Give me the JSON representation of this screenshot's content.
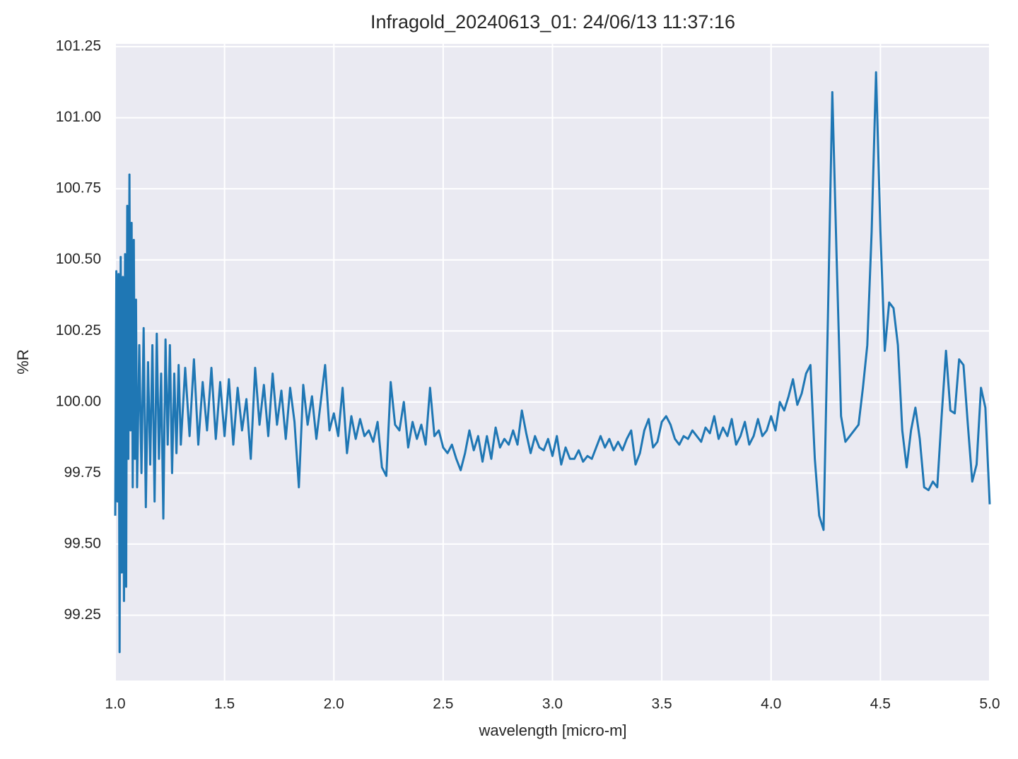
{
  "chart_data": {
    "type": "line",
    "title": "Infragold_20240613_01:  24/06/13 11:37:16",
    "xlabel": "wavelength [micro-m]",
    "ylabel": "%R",
    "xlim": [
      1.0,
      5.0
    ],
    "ylim": [
      99.02,
      101.26
    ],
    "xticks": [
      {
        "value": 1,
        "label": "1.0"
      },
      1.5,
      {
        "value": 2,
        "label": "2.0"
      },
      2.5,
      {
        "value": 3,
        "label": "3.0"
      },
      3.5,
      {
        "value": 4,
        "label": "4.0"
      },
      4.5,
      {
        "value": 5,
        "label": "5.0"
      }
    ],
    "yticks": [
      99.25,
      {
        "value": 99.5,
        "label": "99.50"
      },
      99.75,
      {
        "value": 100,
        "label": "100.00"
      },
      100.25,
      {
        "value": 100.5,
        "label": "100.50"
      },
      100.75,
      {
        "value": 101,
        "label": "101.00"
      },
      101.25
    ],
    "grid": true,
    "x": [
      1.0,
      1.005,
      1.01,
      1.015,
      1.02,
      1.025,
      1.03,
      1.035,
      1.04,
      1.045,
      1.05,
      1.055,
      1.06,
      1.065,
      1.07,
      1.075,
      1.08,
      1.085,
      1.09,
      1.095,
      1.1,
      1.11,
      1.12,
      1.13,
      1.14,
      1.15,
      1.16,
      1.17,
      1.18,
      1.19,
      1.2,
      1.21,
      1.22,
      1.23,
      1.24,
      1.25,
      1.26,
      1.27,
      1.28,
      1.29,
      1.3,
      1.32,
      1.34,
      1.36,
      1.38,
      1.4,
      1.42,
      1.44,
      1.46,
      1.48,
      1.5,
      1.52,
      1.54,
      1.56,
      1.58,
      1.6,
      1.62,
      1.64,
      1.66,
      1.68,
      1.7,
      1.72,
      1.74,
      1.76,
      1.78,
      1.8,
      1.82,
      1.84,
      1.86,
      1.88,
      1.9,
      1.92,
      1.94,
      1.96,
      1.98,
      2.0,
      2.02,
      2.04,
      2.06,
      2.08,
      2.1,
      2.12,
      2.14,
      2.16,
      2.18,
      2.2,
      2.22,
      2.24,
      2.26,
      2.28,
      2.3,
      2.32,
      2.34,
      2.36,
      2.38,
      2.4,
      2.42,
      2.44,
      2.46,
      2.48,
      2.5,
      2.52,
      2.54,
      2.56,
      2.58,
      2.6,
      2.62,
      2.64,
      2.66,
      2.68,
      2.7,
      2.72,
      2.74,
      2.76,
      2.78,
      2.8,
      2.82,
      2.84,
      2.86,
      2.88,
      2.9,
      2.92,
      2.94,
      2.96,
      2.98,
      3.0,
      3.02,
      3.04,
      3.06,
      3.08,
      3.1,
      3.12,
      3.14,
      3.16,
      3.18,
      3.2,
      3.22,
      3.24,
      3.26,
      3.28,
      3.3,
      3.32,
      3.34,
      3.36,
      3.38,
      3.4,
      3.42,
      3.44,
      3.46,
      3.48,
      3.5,
      3.52,
      3.54,
      3.56,
      3.58,
      3.6,
      3.62,
      3.64,
      3.66,
      3.68,
      3.7,
      3.72,
      3.74,
      3.76,
      3.78,
      3.8,
      3.82,
      3.84,
      3.86,
      3.88,
      3.9,
      3.92,
      3.94,
      3.96,
      3.98,
      4.0,
      4.02,
      4.04,
      4.06,
      4.08,
      4.1,
      4.12,
      4.14,
      4.16,
      4.18,
      4.2,
      4.22,
      4.24,
      4.26,
      4.28,
      4.3,
      4.32,
      4.34,
      4.36,
      4.38,
      4.4,
      4.42,
      4.44,
      4.46,
      4.48,
      4.5,
      4.52,
      4.54,
      4.56,
      4.58,
      4.6,
      4.62,
      4.64,
      4.66,
      4.68,
      4.7,
      4.72,
      4.74,
      4.76,
      4.78,
      4.8,
      4.82,
      4.84,
      4.86,
      4.88,
      4.9,
      4.92,
      4.94,
      4.96,
      4.98,
      5.0
    ],
    "series": [
      {
        "color": "#1f77b4",
        "values": [
          99.6,
          100.46,
          99.65,
          100.45,
          99.12,
          100.51,
          99.4,
          100.44,
          99.3,
          100.52,
          99.35,
          100.69,
          99.8,
          100.8,
          99.9,
          100.63,
          99.7,
          100.57,
          99.8,
          100.36,
          99.7,
          100.2,
          99.75,
          100.26,
          99.63,
          100.14,
          99.78,
          100.2,
          99.65,
          100.24,
          99.8,
          100.1,
          99.59,
          100.22,
          99.85,
          100.2,
          99.75,
          100.1,
          99.82,
          100.13,
          99.85,
          100.12,
          99.88,
          100.15,
          99.85,
          100.07,
          99.9,
          100.12,
          99.87,
          100.07,
          99.88,
          100.08,
          99.85,
          100.05,
          99.9,
          100.01,
          99.8,
          100.12,
          99.92,
          100.06,
          99.88,
          100.1,
          99.92,
          100.04,
          99.87,
          100.05,
          99.93,
          99.7,
          100.06,
          99.92,
          100.02,
          99.87,
          100.0,
          100.13,
          99.9,
          99.96,
          99.88,
          100.05,
          99.82,
          99.95,
          99.87,
          99.94,
          99.88,
          99.9,
          99.86,
          99.93,
          99.77,
          99.74,
          100.07,
          99.92,
          99.9,
          100.0,
          99.84,
          99.93,
          99.87,
          99.92,
          99.85,
          100.05,
          99.88,
          99.9,
          99.84,
          99.82,
          99.85,
          99.8,
          99.76,
          99.82,
          99.9,
          99.83,
          99.88,
          99.79,
          99.88,
          99.8,
          99.91,
          99.84,
          99.87,
          99.85,
          99.9,
          99.85,
          99.97,
          99.89,
          99.82,
          99.88,
          99.84,
          99.83,
          99.87,
          99.81,
          99.88,
          99.78,
          99.84,
          99.8,
          99.8,
          99.83,
          99.79,
          99.81,
          99.8,
          99.84,
          99.88,
          99.84,
          99.87,
          99.83,
          99.86,
          99.83,
          99.87,
          99.9,
          99.78,
          99.82,
          99.9,
          99.94,
          99.84,
          99.86,
          99.93,
          99.95,
          99.92,
          99.87,
          99.85,
          99.88,
          99.87,
          99.9,
          99.88,
          99.86,
          99.91,
          99.89,
          99.95,
          99.87,
          99.91,
          99.88,
          99.94,
          99.85,
          99.88,
          99.93,
          99.85,
          99.88,
          99.94,
          99.88,
          99.9,
          99.95,
          99.9,
          100.0,
          99.97,
          100.02,
          100.08,
          99.99,
          100.03,
          100.1,
          100.13,
          99.8,
          99.6,
          99.55,
          100.3,
          101.09,
          100.5,
          99.95,
          99.86,
          99.88,
          99.9,
          99.92,
          100.05,
          100.2,
          100.6,
          101.16,
          100.6,
          100.18,
          100.35,
          100.33,
          100.2,
          99.9,
          99.77,
          99.9,
          99.98,
          99.87,
          99.7,
          99.69,
          99.72,
          99.7,
          99.95,
          100.18,
          99.97,
          99.96,
          100.15,
          100.13,
          99.92,
          99.72,
          99.78,
          100.05,
          99.98,
          99.64
        ]
      }
    ]
  }
}
